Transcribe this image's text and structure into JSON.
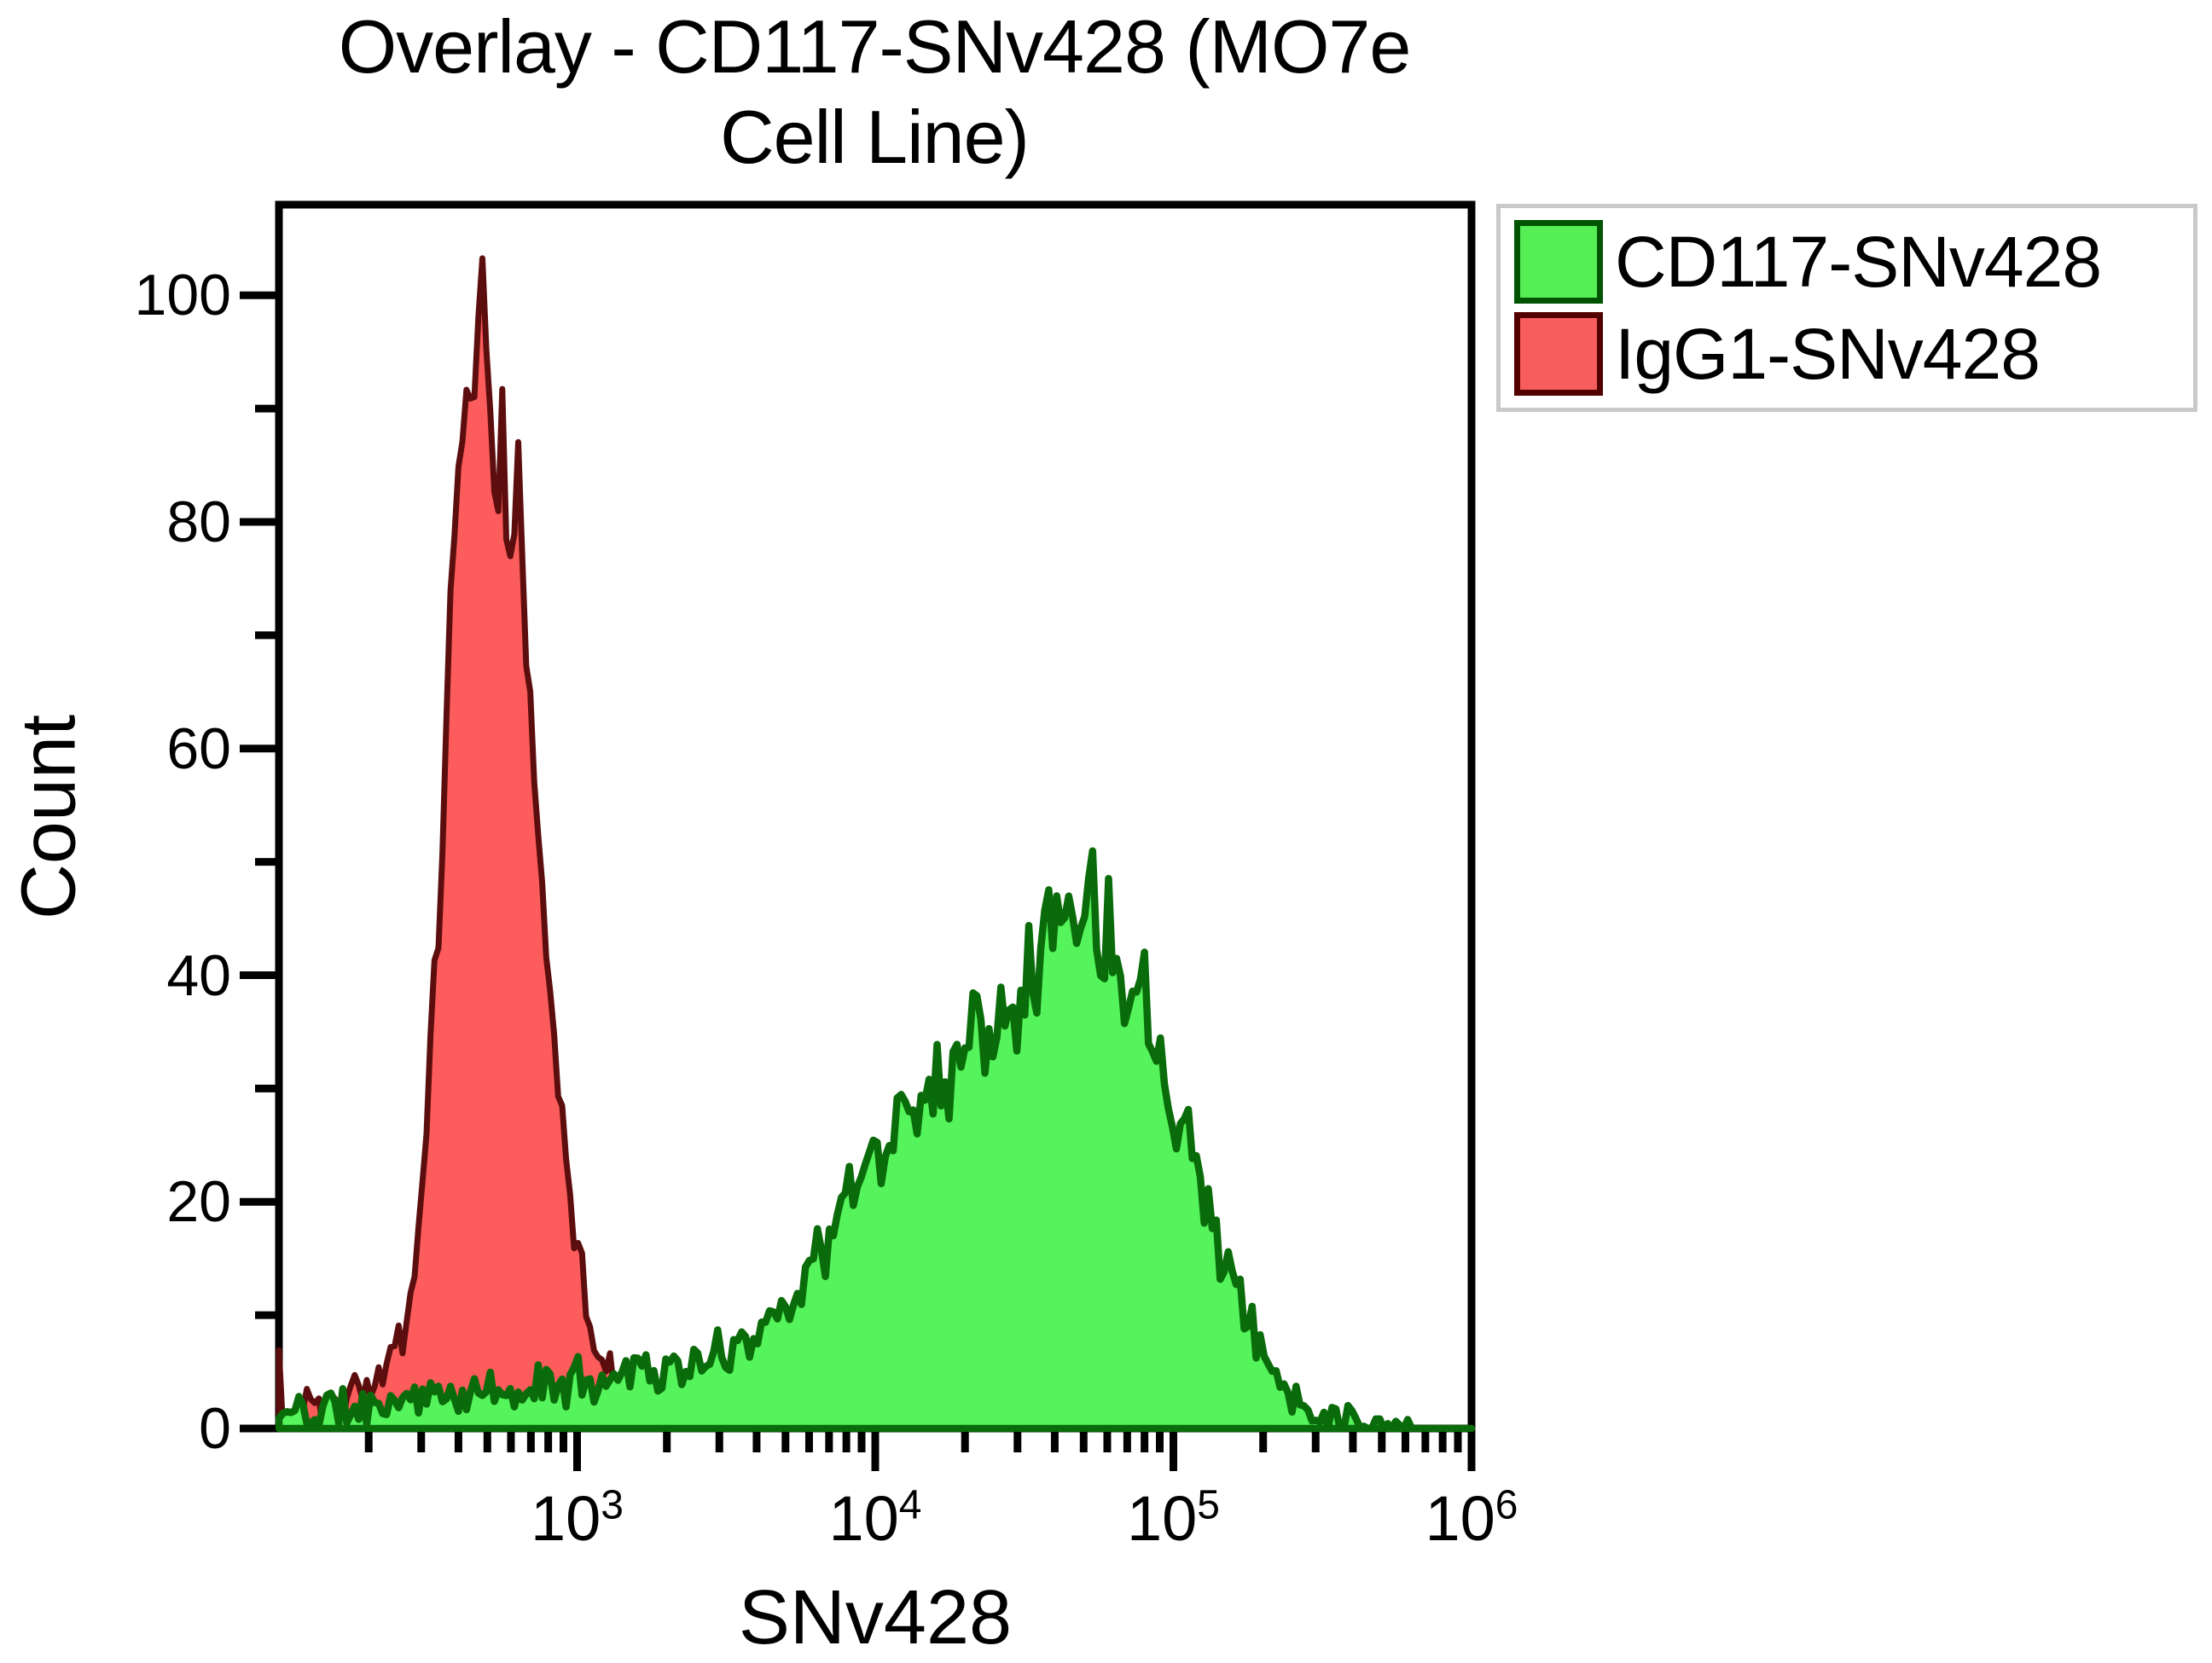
{
  "figure": {
    "title_line1": "Overlay - CD117-SNv428 (MO7e",
    "title_line2": "Cell Line)",
    "background": "#ffffff"
  },
  "axes": {
    "x_label": "SNv428",
    "y_label": "Count",
    "y_tick_labels": [
      "0",
      "20",
      "40",
      "60",
      "80",
      "100"
    ],
    "x_tick_labels": [
      {
        "base": "10",
        "exp": "3"
      },
      {
        "base": "10",
        "exp": "4"
      },
      {
        "base": "10",
        "exp": "5"
      },
      {
        "base": "10",
        "exp": "6"
      }
    ]
  },
  "legend": {
    "items": [
      {
        "label": "CD117-SNv428",
        "fill": "#55ee55",
        "border": "#005300"
      },
      {
        "label": "IgG1-SNv428",
        "fill": "#f75d5d",
        "border": "#530000"
      }
    ]
  },
  "chart_data": {
    "type": "area",
    "variant": "flow-cytometry-histogram-overlay",
    "title": "Overlay - CD117-SNv428 (MO7e Cell Line)",
    "xlabel": "SNv428",
    "ylabel": "Count",
    "x_scale": "log10",
    "xlim": [
      100,
      1000000
    ],
    "ylim": [
      0,
      108
    ],
    "x_major_ticks": [
      1000,
      10000,
      100000,
      1000000
    ],
    "y_major_ticks": [
      0,
      20,
      40,
      60,
      80,
      100
    ],
    "y_minor_ticks": [
      10,
      30,
      50,
      70,
      90
    ],
    "grid": false,
    "legend_position": "outside-top-right",
    "draw_order": [
      "IgG1-SNv428",
      "CD117-SNv428"
    ],
    "series": [
      {
        "name": "IgG1-SNv428",
        "fill": "#fc5c5c",
        "stroke": "#5c0e0e",
        "stroke_width": 7,
        "fill_opacity": 1,
        "peak": {
          "x": 480,
          "count": 103
        },
        "edge_spike_count": 8.5,
        "noise_rel": 0.07,
        "noise_abs": 2.0,
        "seed": 3,
        "envelope_log10x_count": [
          [
            2.0,
            8.5
          ],
          [
            2.013,
            1.2
          ],
          [
            2.05,
            1.2
          ],
          [
            2.1,
            2.0
          ],
          [
            2.14,
            1.2
          ],
          [
            2.18,
            1.6
          ],
          [
            2.22,
            2.8
          ],
          [
            2.26,
            3.6
          ],
          [
            2.3,
            2.8
          ],
          [
            2.34,
            4.0
          ],
          [
            2.38,
            5.5
          ],
          [
            2.42,
            8.5
          ],
          [
            2.46,
            15
          ],
          [
            2.5,
            28
          ],
          [
            2.54,
            48
          ],
          [
            2.58,
            70
          ],
          [
            2.62,
            86
          ],
          [
            2.65,
            94
          ],
          [
            2.68,
            101
          ],
          [
            2.7,
            90
          ],
          [
            2.73,
            87
          ],
          [
            2.76,
            85
          ],
          [
            2.79,
            76
          ],
          [
            2.81,
            88
          ],
          [
            2.83,
            70
          ],
          [
            2.86,
            54
          ],
          [
            2.89,
            44
          ],
          [
            2.92,
            36
          ],
          [
            2.95,
            28
          ],
          [
            2.98,
            20
          ],
          [
            3.01,
            14.5
          ],
          [
            3.04,
            10.5
          ],
          [
            3.08,
            6.5
          ],
          [
            3.12,
            4.2
          ],
          [
            3.16,
            2.4
          ],
          [
            3.2,
            1.3
          ],
          [
            3.24,
            0.5
          ],
          [
            3.28,
            0
          ],
          [
            6.0,
            0
          ]
        ]
      },
      {
        "name": "CD117-SNv428",
        "fill": "#55f35c",
        "stroke": "#0a6b0a",
        "stroke_width": 8.5,
        "fill_opacity": 1,
        "peak": {
          "x": 49000,
          "count": 49
        },
        "noise_rel": 0.13,
        "noise_abs": 1.6,
        "seed": 11,
        "envelope_log10x_count": [
          [
            2.0,
            0.8
          ],
          [
            2.06,
            1.8
          ],
          [
            2.12,
            1.2
          ],
          [
            2.18,
            2.2
          ],
          [
            2.24,
            1.6
          ],
          [
            2.3,
            2.0
          ],
          [
            2.36,
            2.6
          ],
          [
            2.42,
            2.2
          ],
          [
            2.48,
            3.0
          ],
          [
            2.54,
            2.4
          ],
          [
            2.6,
            3.2
          ],
          [
            2.66,
            2.6
          ],
          [
            2.72,
            3.4
          ],
          [
            2.78,
            2.8
          ],
          [
            2.84,
            3.6
          ],
          [
            2.9,
            4.2
          ],
          [
            2.96,
            3.6
          ],
          [
            3.02,
            4.6
          ],
          [
            3.08,
            4.0
          ],
          [
            3.14,
            5.2
          ],
          [
            3.2,
            5.8
          ],
          [
            3.26,
            4.8
          ],
          [
            3.32,
            5.4
          ],
          [
            3.38,
            5.0
          ],
          [
            3.44,
            6.0
          ],
          [
            3.5,
            6.8
          ],
          [
            3.56,
            7.8
          ],
          [
            3.62,
            9.0
          ],
          [
            3.68,
            10.5
          ],
          [
            3.74,
            12.5
          ],
          [
            3.8,
            15
          ],
          [
            3.86,
            17.5
          ],
          [
            3.92,
            20.5
          ],
          [
            3.98,
            24
          ],
          [
            4.04,
            26
          ],
          [
            4.1,
            27.5
          ],
          [
            4.16,
            29.5
          ],
          [
            4.22,
            31.5
          ],
          [
            4.28,
            33.5
          ],
          [
            4.34,
            35.5
          ],
          [
            4.4,
            37.5
          ],
          [
            4.46,
            39
          ],
          [
            4.52,
            41
          ],
          [
            4.58,
            43.5
          ],
          [
            4.64,
            46
          ],
          [
            4.69,
            48.5
          ],
          [
            4.74,
            45
          ],
          [
            4.79,
            43
          ],
          [
            4.84,
            41.5
          ],
          [
            4.89,
            39
          ],
          [
            4.94,
            35.5
          ],
          [
            5.0,
            30
          ],
          [
            5.05,
            26
          ],
          [
            5.1,
            21
          ],
          [
            5.15,
            17
          ],
          [
            5.2,
            13
          ],
          [
            5.25,
            9.5
          ],
          [
            5.3,
            6.5
          ],
          [
            5.35,
            4.5
          ],
          [
            5.4,
            3.0
          ],
          [
            5.45,
            2.0
          ],
          [
            5.5,
            1.4
          ],
          [
            5.56,
            0.9
          ],
          [
            5.62,
            0.5
          ],
          [
            5.7,
            0.2
          ],
          [
            5.8,
            0
          ],
          [
            6.0,
            0
          ]
        ]
      }
    ]
  }
}
